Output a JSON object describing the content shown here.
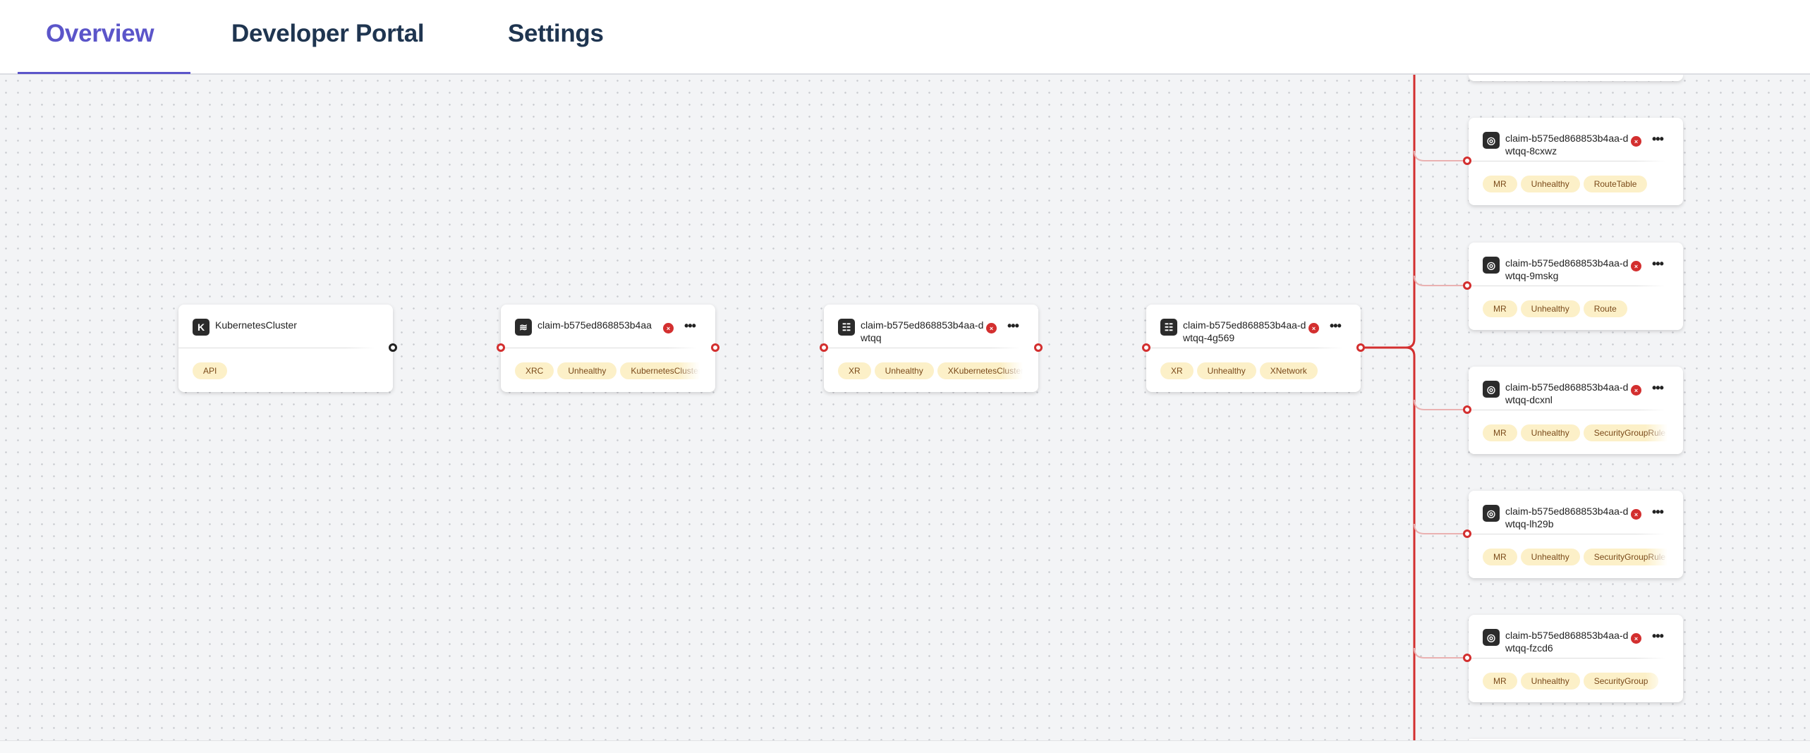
{
  "tabs": [
    {
      "label": "Overview",
      "active": true
    },
    {
      "label": "Developer Portal"
    },
    {
      "label": "Settings"
    }
  ],
  "colors": {
    "accent": "#5b55c9",
    "edge": "#d32f2f",
    "tag_bg": "#fcf0c8",
    "error": "#d32f2f"
  },
  "nodes": [
    {
      "title": "KubernetesCluster",
      "icon": "k-logo-icon",
      "tags": [
        "API"
      ],
      "error": false
    },
    {
      "title": "claim-b575ed868853b4aa",
      "icon": "layers-icon",
      "tags": [
        "XRC",
        "Unhealthy",
        "KubernetesCluster"
      ],
      "error": true
    },
    {
      "title": "claim-b575ed868853b4aa-dwtqq",
      "icon": "list-icon",
      "tags": [
        "XR",
        "Unhealthy",
        "XKubernetesCluster"
      ],
      "error": true
    },
    {
      "title": "claim-b575ed868853b4aa-dwtqq-4g569",
      "icon": "list-icon",
      "tags": [
        "XR",
        "Unhealthy",
        "XNetwork"
      ],
      "error": true
    }
  ],
  "children": [
    {
      "title": "claim-b575ed868853b4aa-dwtqq-8cxwz",
      "tags": [
        "MR",
        "Unhealthy",
        "RouteTable"
      ]
    },
    {
      "title": "claim-b575ed868853b4aa-dwtqq-9mskg",
      "tags": [
        "MR",
        "Unhealthy",
        "Route"
      ]
    },
    {
      "title": "claim-b575ed868853b4aa-dwtqq-dcxnl",
      "tags": [
        "MR",
        "Unhealthy",
        "SecurityGroupRule"
      ]
    },
    {
      "title": "claim-b575ed868853b4aa-dwtqq-lh29b",
      "tags": [
        "MR",
        "Unhealthy",
        "SecurityGroupRule"
      ]
    },
    {
      "title": "claim-b575ed868853b4aa-dwtqq-fzcd6",
      "tags": [
        "MR",
        "Unhealthy",
        "SecurityGroup"
      ]
    }
  ],
  "icons": {
    "error": "×",
    "more": "•••",
    "mr": "◎",
    "k": "K",
    "layers": "≋",
    "list": "☷"
  }
}
